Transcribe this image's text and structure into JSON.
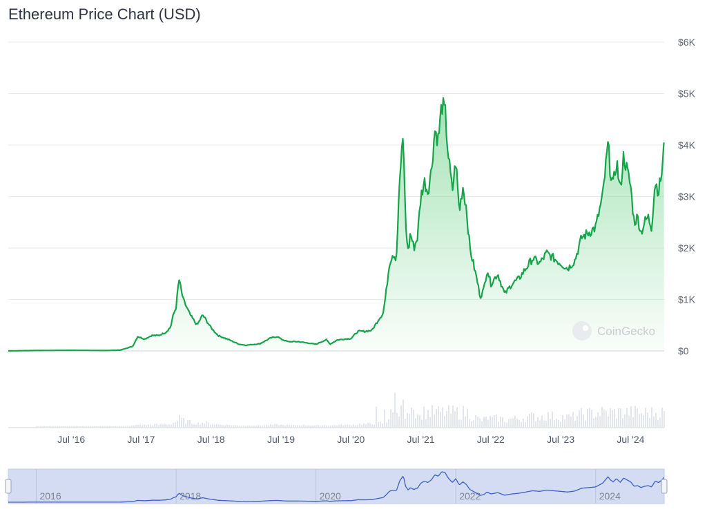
{
  "header": {
    "title": "Ethereum Price Chart (USD)"
  },
  "watermark": "CoinGecko",
  "colors": {
    "line": "#16a34a",
    "fill_top": "#86d99c",
    "grid": "#e8eaee",
    "volume": "#e3e6ec",
    "navigator_bg": "#d3dcf2",
    "navigator_line": "#3d5fc4"
  },
  "chart_data": {
    "type": "area",
    "title": "Ethereum Price Chart (USD)",
    "xlabel": "",
    "ylabel": "",
    "y_tick_labels": [
      "$0",
      "$1K",
      "$2K",
      "$3K",
      "$4K",
      "$5K",
      "$6K"
    ],
    "y_ticks": [
      0,
      1000,
      2000,
      3000,
      4000,
      5000,
      6000
    ],
    "ylim": [
      0,
      6000
    ],
    "x_tick_labels": [
      "Jul '16",
      "Jul '17",
      "Jul '18",
      "Jul '19",
      "Jul '20",
      "Jul '21",
      "Jul '22",
      "Jul '23",
      "Jul '24"
    ],
    "x_ticks": [
      2016.5,
      2017.5,
      2018.5,
      2019.5,
      2020.5,
      2021.5,
      2022.5,
      2023.5,
      2024.5
    ],
    "xlim": [
      2015.6,
      2024.98
    ],
    "navigator_labels": [
      "2016",
      "2018",
      "2020",
      "2022",
      "2024"
    ],
    "navigator_ticks": [
      2016,
      2018,
      2020,
      2022,
      2024
    ],
    "series": [
      {
        "x": [
          2015.6,
          2016.0,
          2016.5,
          2017.0,
          2017.2,
          2017.38,
          2017.45,
          2017.55,
          2017.65,
          2017.75,
          2017.85,
          2017.92,
          2017.96,
          2018.0,
          2018.04,
          2018.1,
          2018.2,
          2018.3,
          2018.38,
          2018.5,
          2018.6,
          2018.75,
          2018.9,
          2019.0,
          2019.2,
          2019.35,
          2019.45,
          2019.5,
          2019.6,
          2019.75,
          2019.9,
          2020.0,
          2020.15,
          2020.2,
          2020.3,
          2020.4,
          2020.5,
          2020.6,
          2020.7,
          2020.8,
          2020.9,
          2020.96,
          2021.0,
          2021.05,
          2021.1,
          2021.15,
          2021.2,
          2021.25,
          2021.28,
          2021.32,
          2021.35,
          2021.4,
          2021.45,
          2021.5,
          2021.55,
          2021.6,
          2021.65,
          2021.7,
          2021.75,
          2021.8,
          2021.85,
          2021.88,
          2021.9,
          2021.95,
          2022.0,
          2022.05,
          2022.1,
          2022.15,
          2022.2,
          2022.25,
          2022.3,
          2022.35,
          2022.4,
          2022.45,
          2022.5,
          2022.6,
          2022.7,
          2022.8,
          2022.9,
          2023.0,
          2023.1,
          2023.2,
          2023.3,
          2023.4,
          2023.5,
          2023.6,
          2023.7,
          2023.8,
          2023.9,
          2024.0,
          2024.1,
          2024.18,
          2024.2,
          2024.25,
          2024.3,
          2024.35,
          2024.4,
          2024.45,
          2024.5,
          2024.55,
          2024.6,
          2024.65,
          2024.7,
          2024.75,
          2024.8,
          2024.85,
          2024.9,
          2024.95,
          2024.98
        ],
        "values": [
          1,
          8,
          12,
          8,
          15,
          90,
          280,
          230,
          300,
          300,
          360,
          460,
          700,
          850,
          1400,
          1000,
          700,
          500,
          700,
          450,
          300,
          220,
          130,
          110,
          140,
          250,
          280,
          230,
          180,
          180,
          150,
          130,
          220,
          130,
          210,
          230,
          240,
          380,
          380,
          400,
          620,
          730,
          1100,
          1700,
          1900,
          1800,
          3400,
          4170,
          2500,
          1900,
          2300,
          2000,
          2200,
          3000,
          3300,
          3100,
          3500,
          4300,
          4100,
          4800,
          4600,
          4000,
          3700,
          3100,
          3700,
          2700,
          3200,
          2800,
          2000,
          1700,
          1400,
          1050,
          1200,
          1600,
          1300,
          1500,
          1100,
          1300,
          1400,
          1600,
          1800,
          1700,
          1900,
          1800,
          1700,
          1600,
          1750,
          2200,
          2300,
          2400,
          3000,
          4050,
          3600,
          3200,
          3700,
          3100,
          3800,
          3500,
          3200,
          2500,
          2600,
          2300,
          2500,
          2600,
          2400,
          3300,
          3100,
          3500,
          4000
        ]
      }
    ]
  }
}
